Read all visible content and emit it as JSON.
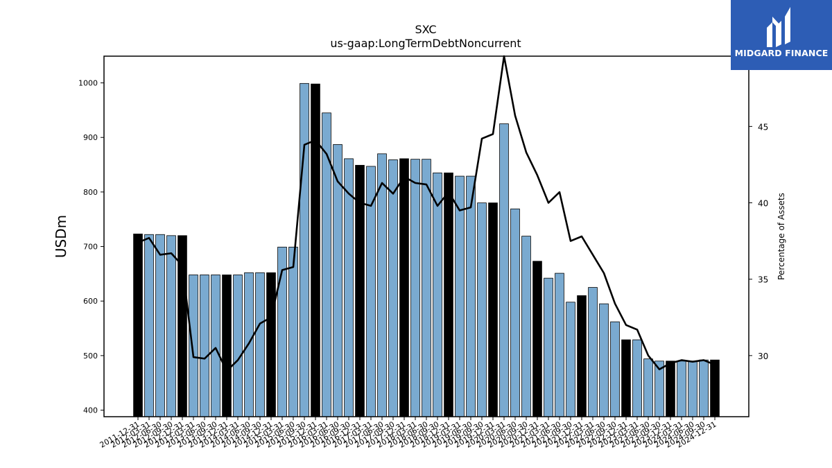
{
  "chart_data": {
    "type": "bar",
    "title": "SXC",
    "subtitle": "us-gaap:LongTermDebtNoncurrent",
    "ylabel": "USDm",
    "y2label": "Percentage of Assets",
    "ylim": [
      388,
      1049
    ],
    "y2lim": [
      26.0,
      49.6
    ],
    "yticks": [
      400,
      500,
      600,
      700,
      800,
      900,
      1000
    ],
    "y2ticks": [
      30,
      35,
      40,
      45
    ],
    "grid": false,
    "colors": {
      "bar": "#7aaad0",
      "bar_highlight": "#000000",
      "line": "#000000"
    },
    "categories": [
      "2011-12-31",
      "2012-03-31",
      "2012-06-30",
      "2012-09-30",
      "2012-12-31",
      "2013-03-31",
      "2013-06-30",
      "2013-09-30",
      "2013-12-31",
      "2014-03-31",
      "2014-06-30",
      "2014-09-30",
      "2014-12-31",
      "2015-03-31",
      "2015-06-30",
      "2015-09-30",
      "2015-12-31",
      "2016-03-31",
      "2016-06-30",
      "2016-09-30",
      "2016-12-31",
      "2017-03-31",
      "2017-06-30",
      "2017-09-30",
      "2017-12-31",
      "2018-03-31",
      "2018-06-30",
      "2018-09-30",
      "2018-12-31",
      "2019-03-31",
      "2019-06-30",
      "2019-09-30",
      "2019-12-31",
      "2020-03-31",
      "2020-06-30",
      "2020-09-30",
      "2020-12-31",
      "2021-03-31",
      "2021-06-30",
      "2021-09-30",
      "2021-12-31",
      "2022-03-31",
      "2022-06-30",
      "2022-09-30",
      "2022-12-31",
      "2023-03-31",
      "2023-06-30",
      "2023-09-30",
      "2023-12-31",
      "2024-03-31",
      "2024-06-30",
      "2024-09-30",
      "2024-12-31"
    ],
    "series": [
      {
        "type": "bar",
        "values": [
          723,
          722,
          722,
          720,
          720,
          648,
          648,
          648,
          648,
          648,
          652,
          652,
          652,
          699,
          699,
          999,
          998,
          945,
          887,
          861,
          849,
          847,
          870,
          859,
          861,
          860,
          860,
          835,
          835,
          829,
          829,
          780,
          780,
          925,
          769,
          719,
          673,
          642,
          651,
          598,
          610,
          625,
          595,
          562,
          529,
          529,
          494,
          490,
          490,
          490,
          490,
          492,
          492
        ],
        "highlight": [
          0,
          4,
          8,
          12,
          16,
          20,
          24,
          28,
          32,
          36,
          40,
          44,
          48,
          52
        ]
      },
      {
        "type": "line",
        "axis": "right",
        "values": [
          37.4,
          37.7,
          36.6,
          36.7,
          35.9,
          29.9,
          29.8,
          30.5,
          29.0,
          29.7,
          30.8,
          32.1,
          32.5,
          35.6,
          35.8,
          43.8,
          44.1,
          43.2,
          41.4,
          40.6,
          40.0,
          39.8,
          41.3,
          40.6,
          41.7,
          41.3,
          41.2,
          39.8,
          40.7,
          39.5,
          39.7,
          44.2,
          44.5,
          49.6,
          45.7,
          43.3,
          41.8,
          40.0,
          40.7,
          37.5,
          37.8,
          36.6,
          35.4,
          33.4,
          32.0,
          31.7,
          30.0,
          29.1,
          29.5,
          29.7,
          29.6,
          29.7,
          29.4
        ]
      }
    ],
    "legend": "none"
  },
  "logo": {
    "text": "MIDGARD FINANCE"
  }
}
